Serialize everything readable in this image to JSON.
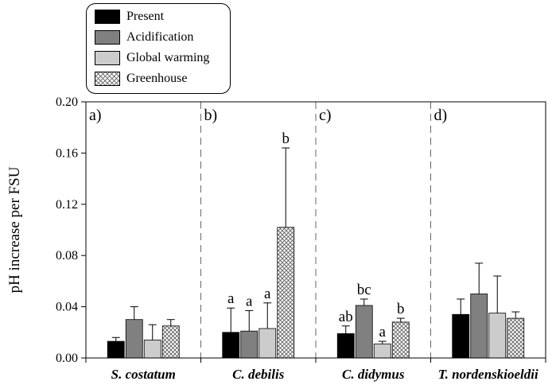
{
  "chart_data": {
    "type": "bar",
    "ylabel": "pH increase per FSU",
    "ylim": [
      0,
      0.2
    ],
    "yticks": [
      0.0,
      0.04,
      0.08,
      0.12,
      0.16,
      0.2
    ],
    "ytick_labels": [
      "0.00",
      "0.04",
      "0.08",
      "0.12",
      "0.16",
      "0.20"
    ],
    "categories": [
      "S. costatum",
      "C. debilis",
      "C. didymus",
      "T. nordenskioeldii"
    ],
    "panel_labels": [
      "a)",
      "b)",
      "c)",
      "d)"
    ],
    "legend_position": "top-left",
    "series": [
      {
        "name": "Present",
        "color": "#000000",
        "pattern": "solid",
        "values": [
          0.013,
          0.02,
          0.019,
          0.034
        ],
        "errors": [
          0.003,
          0.019,
          0.006,
          0.012
        ],
        "letters": [
          "",
          "a",
          "ab",
          ""
        ]
      },
      {
        "name": "Acidification",
        "color": "#808080",
        "pattern": "solid",
        "values": [
          0.03,
          0.021,
          0.041,
          0.05
        ],
        "errors": [
          0.01,
          0.016,
          0.005,
          0.024
        ],
        "letters": [
          "",
          "a",
          "bc",
          ""
        ]
      },
      {
        "name": "Global warming",
        "color": "#cccccc",
        "pattern": "solid",
        "values": [
          0.014,
          0.023,
          0.011,
          0.035
        ],
        "errors": [
          0.012,
          0.02,
          0.002,
          0.029
        ],
        "letters": [
          "",
          "a",
          "a",
          ""
        ]
      },
      {
        "name": "Greenhouse",
        "color": "#ffffff",
        "pattern": "crosshatch",
        "values": [
          0.025,
          0.102,
          0.028,
          0.031
        ],
        "errors": [
          0.005,
          0.062,
          0.003,
          0.005
        ],
        "letters": [
          "",
          "b",
          "b",
          ""
        ]
      }
    ]
  }
}
